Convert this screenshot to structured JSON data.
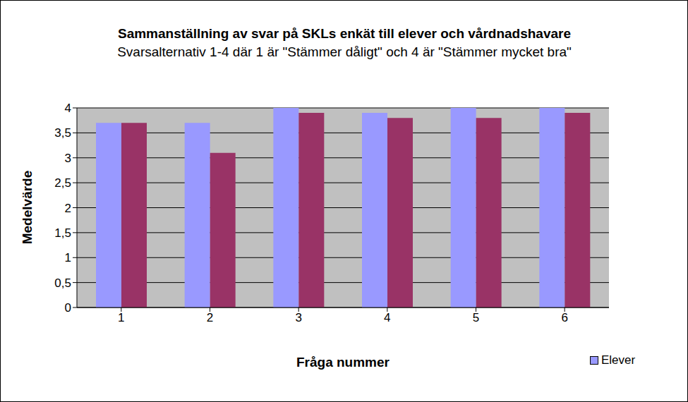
{
  "chart_data": {
    "type": "bar",
    "title": "Sammanställning av svar på SKLs enkät till elever och vårdnadshavare",
    "subtitle": "Svarsalternativ 1-4 där 1 är \"Stämmer dåligt\" och 4 är \"Stämmer mycket bra\"",
    "x_label": "Fråga nummer",
    "y_label": "Medelvärde",
    "categories": [
      "1",
      "2",
      "3",
      "4",
      "5",
      "6"
    ],
    "series": [
      {
        "name": "Elever",
        "color": "#9999FF",
        "values": [
          3.7,
          3.7,
          4.0,
          3.9,
          4.0,
          4.0
        ]
      },
      {
        "color": "#993366",
        "values": [
          3.7,
          3.1,
          3.9,
          3.8,
          3.8,
          3.9
        ]
      }
    ],
    "ylim": [
      0,
      4
    ],
    "yticks": [
      0,
      {
        "value": 0.5,
        "label": "0,5"
      },
      1,
      {
        "value": 1.5,
        "label": "1,5"
      },
      2,
      {
        "value": 2.5,
        "label": "2,5"
      },
      3,
      {
        "value": 3.5,
        "label": "3,5"
      },
      4
    ],
    "grid": true,
    "legend": "lower right"
  }
}
